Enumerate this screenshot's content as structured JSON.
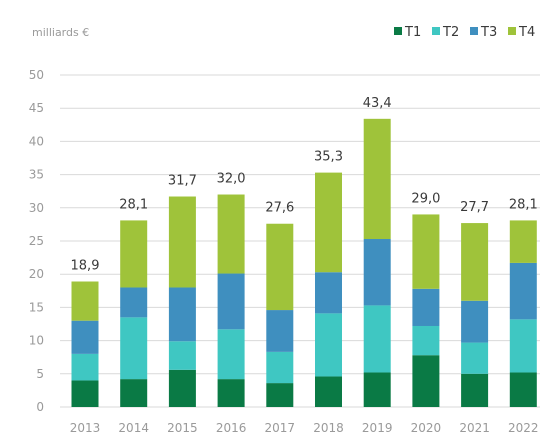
{
  "chart_data": {
    "type": "bar",
    "stacked": true,
    "unit_label": "milliards €",
    "categories": [
      "2013",
      "2014",
      "2015",
      "2016",
      "2017",
      "2018",
      "2019",
      "2020",
      "2021",
      "2022"
    ],
    "series": [
      {
        "name": "T1",
        "color": "#0a7a45",
        "values": [
          4.0,
          4.2,
          5.6,
          4.2,
          3.6,
          4.6,
          5.2,
          7.8,
          5.0,
          5.2
        ]
      },
      {
        "name": "T2",
        "color": "#3fc7c2",
        "values": [
          4.0,
          9.3,
          4.3,
          7.5,
          4.7,
          9.5,
          10.1,
          4.4,
          4.7,
          8.0
        ]
      },
      {
        "name": "T3",
        "color": "#3f8fbf",
        "values": [
          5.0,
          4.5,
          8.1,
          8.4,
          6.3,
          6.2,
          10.0,
          5.6,
          6.3,
          8.5
        ]
      },
      {
        "name": "T4",
        "color": "#9fc33a",
        "values": [
          5.9,
          10.1,
          13.7,
          11.9,
          13.0,
          15.0,
          18.1,
          11.2,
          11.7,
          6.4
        ]
      }
    ],
    "totals": [
      "18,9",
      "28,1",
      "31,7",
      "32,0",
      "27,6",
      "35,3",
      "43,4",
      "29,0",
      "27,7",
      "28,1"
    ],
    "ylim": [
      0,
      50
    ],
    "yticks": [
      0,
      5,
      10,
      15,
      20,
      25,
      30,
      35,
      40,
      45,
      50
    ],
    "grid": true,
    "legend_position": "top-right"
  }
}
